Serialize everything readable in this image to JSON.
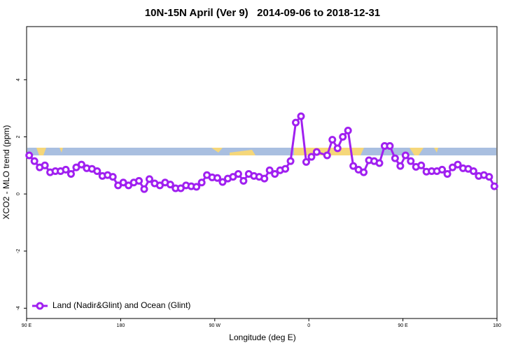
{
  "chart_data": {
    "type": "line",
    "title": "10N-15N April (Ver 9)   2014-09-06 to 2018-12-31",
    "x_label": "Longitude (deg E)",
    "y_label": "XCO2 - MLO trend (ppm)",
    "x": [
      92.5,
      97.5,
      102.5,
      107.5,
      112.5,
      117.5,
      122.5,
      127.5,
      132.5,
      137.5,
      142.5,
      147.5,
      152.5,
      157.5,
      162.5,
      167.5,
      172.5,
      177.5,
      182.5,
      187.5,
      192.5,
      197.5,
      202.5,
      207.5,
      212.5,
      217.5,
      222.5,
      227.5,
      232.5,
      237.5,
      242.5,
      247.5,
      252.5,
      257.5,
      262.5,
      267.5,
      272.5,
      277.5,
      282.5,
      287.5,
      292.5,
      297.5,
      302.5,
      307.5,
      312.5,
      317.5,
      322.5,
      327.5,
      332.5,
      337.5,
      342.5,
      347.5,
      352.5,
      357.5,
      362.5,
      367.5,
      377.5,
      382.5,
      387.5,
      392.5,
      397.5,
      402.5,
      407.5,
      412.5,
      417.5,
      422.5,
      427.5,
      432.5,
      437.5,
      442.5,
      447.5,
      452.5,
      457.5,
      462.5,
      467.5,
      472.5,
      477.5,
      482.5,
      487.5,
      492.5,
      497.5,
      502.5,
      507.5,
      512.5,
      517.5,
      522.5,
      527.5,
      532.5,
      537.5
    ],
    "series": [
      {
        "name": "Land (Nadir&Glint) and Ocean (Glint)",
        "color": "#a020f0",
        "values": [
          1.35,
          1.15,
          0.93,
          1.0,
          0.76,
          0.8,
          0.8,
          0.85,
          0.7,
          0.93,
          1.03,
          0.9,
          0.88,
          0.8,
          0.63,
          0.66,
          0.6,
          0.3,
          0.4,
          0.3,
          0.4,
          0.46,
          0.17,
          0.52,
          0.37,
          0.3,
          0.4,
          0.33,
          0.2,
          0.2,
          0.3,
          0.27,
          0.25,
          0.4,
          0.66,
          0.58,
          0.56,
          0.42,
          0.54,
          0.6,
          0.7,
          0.46,
          0.7,
          0.63,
          0.6,
          0.54,
          0.83,
          0.7,
          0.83,
          0.88,
          1.15,
          2.5,
          2.72,
          1.12,
          1.3,
          1.47,
          1.35,
          1.9,
          1.6,
          2.0,
          2.22,
          0.98,
          0.85,
          0.76,
          1.18,
          1.15,
          1.08,
          1.68,
          1.68,
          1.25,
          0.98,
          1.35,
          1.15,
          0.95,
          1.0,
          0.78,
          0.8,
          0.8,
          0.85,
          0.7,
          0.93,
          1.03,
          0.9,
          0.88,
          0.8,
          0.63,
          0.66,
          0.6,
          0.27
        ]
      }
    ],
    "xlim": [
      90,
      540
    ],
    "xticks": [
      {
        "value": 90,
        "label": "90 E"
      },
      180,
      {
        "value": 270,
        "label": "90 W"
      },
      {
        "value": 360,
        "label": "0"
      },
      {
        "value": 450,
        "label": "90 E"
      },
      {
        "value": 540,
        "label": "180"
      }
    ],
    "ylim": [
      -4.36,
      5.86
    ],
    "yticks": [
      -4,
      -2,
      0,
      2,
      4
    ],
    "legend": "bottom-left"
  }
}
